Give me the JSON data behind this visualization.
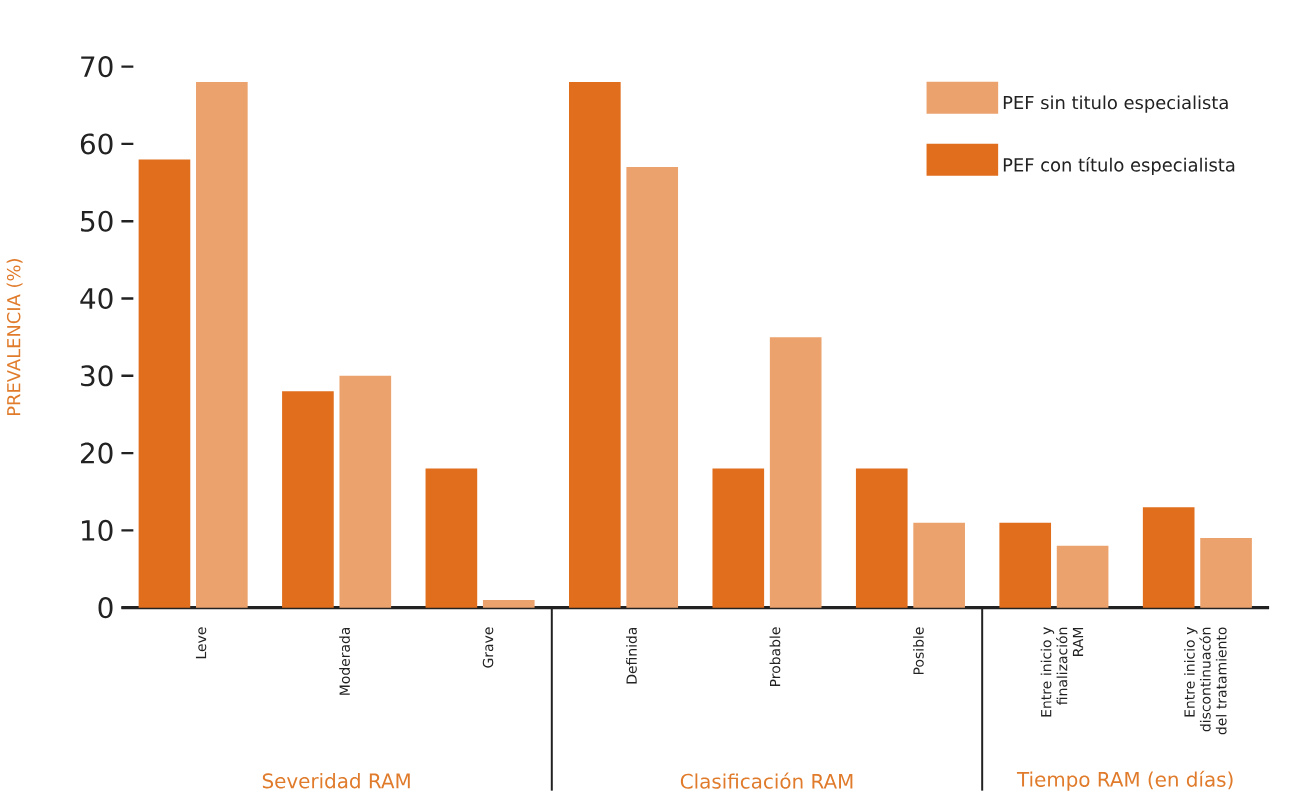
{
  "chart_data": {
    "type": "bar",
    "ylabel": "PREVALENCIA (%)",
    "categories": [
      "Leve",
      "Moderada",
      "Grave",
      "Definida",
      "Probable",
      "Posible",
      "Entre inicio y finalización RAM",
      "Entre inicio y discontinuacón del tratamiento"
    ],
    "series": [
      {
        "name": "PEF con título especialista",
        "color": "#e06e1c",
        "values": [
          58,
          28,
          18,
          68,
          18,
          18,
          11,
          13
        ]
      },
      {
        "name": "PEF sin titulo especialista",
        "color": "#eba26c",
        "values": [
          68,
          30,
          1,
          57,
          35,
          11,
          8,
          9
        ]
      }
    ],
    "ylim": [
      0,
      70
    ],
    "yticks": [
      0,
      10,
      20,
      30,
      40,
      50,
      60,
      70
    ],
    "legend": "top right",
    "grid": false,
    "annotations": [
      "Severidad RAM",
      "Clasificación RAM",
      "Tiempo RAM (en días)"
    ]
  }
}
